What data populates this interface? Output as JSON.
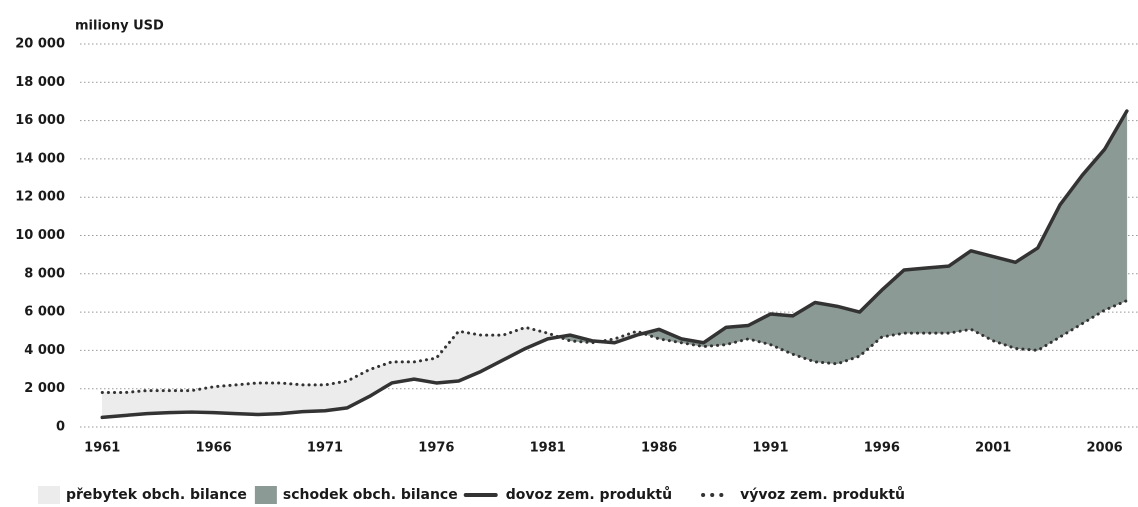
{
  "chart_data": {
    "type": "line",
    "y_label": "miliony USD",
    "x": [
      1961,
      1962,
      1963,
      1964,
      1965,
      1966,
      1967,
      1968,
      1969,
      1970,
      1971,
      1972,
      1973,
      1974,
      1975,
      1976,
      1977,
      1978,
      1979,
      1980,
      1981,
      1982,
      1983,
      1984,
      1985,
      1986,
      1987,
      1988,
      1989,
      1990,
      1991,
      1992,
      1993,
      1994,
      1995,
      1996,
      1997,
      1998,
      1999,
      2000,
      2001,
      2002,
      2003,
      2004,
      2005,
      2006,
      2007
    ],
    "series": [
      {
        "name": "dovoz zem. produktů",
        "color": "#333333",
        "style": "solid",
        "values": [
          500,
          600,
          700,
          750,
          780,
          750,
          700,
          650,
          700,
          800,
          850,
          1000,
          1600,
          2300,
          2500,
          2300,
          2400,
          2900,
          3500,
          4100,
          4600,
          4800,
          4500,
          4400,
          4800,
          5100,
          4600,
          4400,
          5200,
          5300,
          5900,
          5800,
          6500,
          6300,
          6000,
          7150,
          8200,
          8300,
          8400,
          9200,
          8900,
          8600,
          9350,
          11600,
          13150,
          14500,
          16500
        ]
      },
      {
        "name": "vývoz zem. produktů",
        "color": "#333333",
        "style": "dotted",
        "values": [
          1800,
          1800,
          1900,
          1900,
          1900,
          2100,
          2200,
          2300,
          2300,
          2200,
          2200,
          2400,
          3000,
          3400,
          3400,
          3600,
          5000,
          4800,
          4800,
          5200,
          4900,
          4500,
          4400,
          4600,
          5000,
          4600,
          4400,
          4200,
          4300,
          4600,
          4300,
          3800,
          3400,
          3300,
          3700,
          4700,
          4900,
          4900,
          4900,
          5100,
          4500,
          4100,
          4000,
          4700,
          5400,
          6100,
          6600
        ]
      }
    ],
    "areas": [
      {
        "name": "přebytek obch. bilance",
        "color": "#ececec"
      },
      {
        "name": "schodek obch. bilance",
        "color": "#8c9a96"
      }
    ],
    "xlim": [
      1960,
      2007.5
    ],
    "xticks": [
      1961,
      1966,
      1971,
      1976,
      1981,
      1986,
      1991,
      1996,
      2001,
      2006
    ],
    "ylim": [
      0,
      20000
    ],
    "yticks": [
      0,
      {
        "value": 2000,
        "label": "2 000"
      },
      {
        "value": 4000,
        "label": "4 000"
      },
      {
        "value": 6000,
        "label": "6 000"
      },
      {
        "value": 8000,
        "label": "8 000"
      },
      {
        "value": 10000,
        "label": "10 000"
      },
      {
        "value": 12000,
        "label": "12 000"
      },
      {
        "value": 14000,
        "label": "14 000"
      },
      {
        "value": 16000,
        "label": "16 000"
      },
      {
        "value": 18000,
        "label": "18 000"
      },
      {
        "value": 20000,
        "label": "20 000"
      }
    ],
    "grid": true
  }
}
